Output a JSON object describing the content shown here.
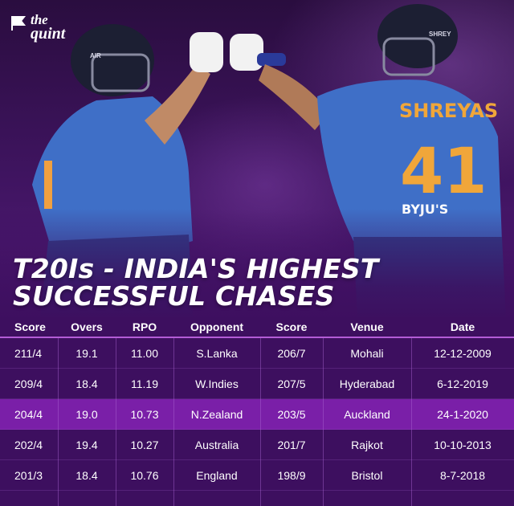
{
  "brand": {
    "line1": "the",
    "line2": "quint",
    "logo_icon": "quint-flag-icon"
  },
  "photo": {
    "jersey_name": "SHREYAS",
    "jersey_number": "41",
    "sponsor": "BYJU'S",
    "helmet_text_left": "AIR",
    "helmet_text_right": "SHREY"
  },
  "headline": {
    "line1": "T20Is - INDIA'S HIGHEST",
    "line2": "SUCCESSFUL CHASES"
  },
  "colors": {
    "background": "#3d0f5f",
    "highlight_row": "#7a1fa8",
    "divider": "#b35cd6",
    "text": "#ffffff"
  },
  "table": {
    "headers": [
      "Score",
      "Overs",
      "RPO",
      "Opponent",
      "Score",
      "Venue",
      "Date"
    ],
    "rows": [
      [
        "211/4",
        "19.1",
        "11.00",
        "S.Lanka",
        "206/7",
        "Mohali",
        "12-12-2009"
      ],
      [
        "209/4",
        "18.4",
        "11.19",
        "W.Indies",
        "207/5",
        "Hyderabad",
        "6-12-2019"
      ],
      [
        "204/4",
        "19.0",
        "10.73",
        "N.Zealand",
        "203/5",
        "Auckland",
        "24-1-2020"
      ],
      [
        "202/4",
        "19.4",
        "10.27",
        "Australia",
        "201/7",
        "Rajkot",
        "10-10-2013"
      ],
      [
        "201/3",
        "18.4",
        "10.76",
        "England",
        "198/9",
        "Bristol",
        "8-7-2018"
      ]
    ],
    "highlighted_row_index": 2
  }
}
